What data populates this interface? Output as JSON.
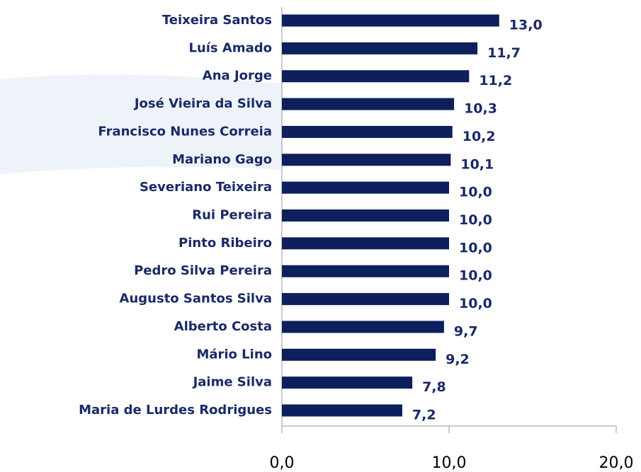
{
  "chart_data": {
    "type": "hbar",
    "categories": [
      "Teixeira Santos",
      "Luís Amado",
      "Ana Jorge",
      "José Vieira da Silva",
      "Francisco Nunes Correia",
      "Mariano Gago",
      "Severiano Teixeira",
      "Rui Pereira",
      "Pinto Ribeiro",
      "Pedro Silva Pereira",
      "Augusto Santos Silva",
      "Alberto Costa",
      "Mário Lino",
      "Jaime Silva",
      "Maria de Lurdes Rodrigues"
    ],
    "values": [
      13.0,
      11.7,
      11.2,
      10.3,
      10.2,
      10.1,
      10.0,
      10.0,
      10.0,
      10.0,
      10.0,
      9.7,
      9.2,
      7.8,
      7.2
    ],
    "value_labels": [
      "13,0",
      "11,7",
      "11,2",
      "10,3",
      "10,2",
      "10,1",
      "10,0",
      "10,0",
      "10,0",
      "10,0",
      "10,0",
      "9,7",
      "9,2",
      "7,8",
      "7,2"
    ],
    "color": "#0d1f5c",
    "xlim": [
      0,
      20
    ],
    "xticks": [
      {
        "value": 0,
        "label": "0,0"
      },
      {
        "value": 10,
        "label": "10,0"
      },
      {
        "value": 20,
        "label": "20,0"
      }
    ]
  }
}
